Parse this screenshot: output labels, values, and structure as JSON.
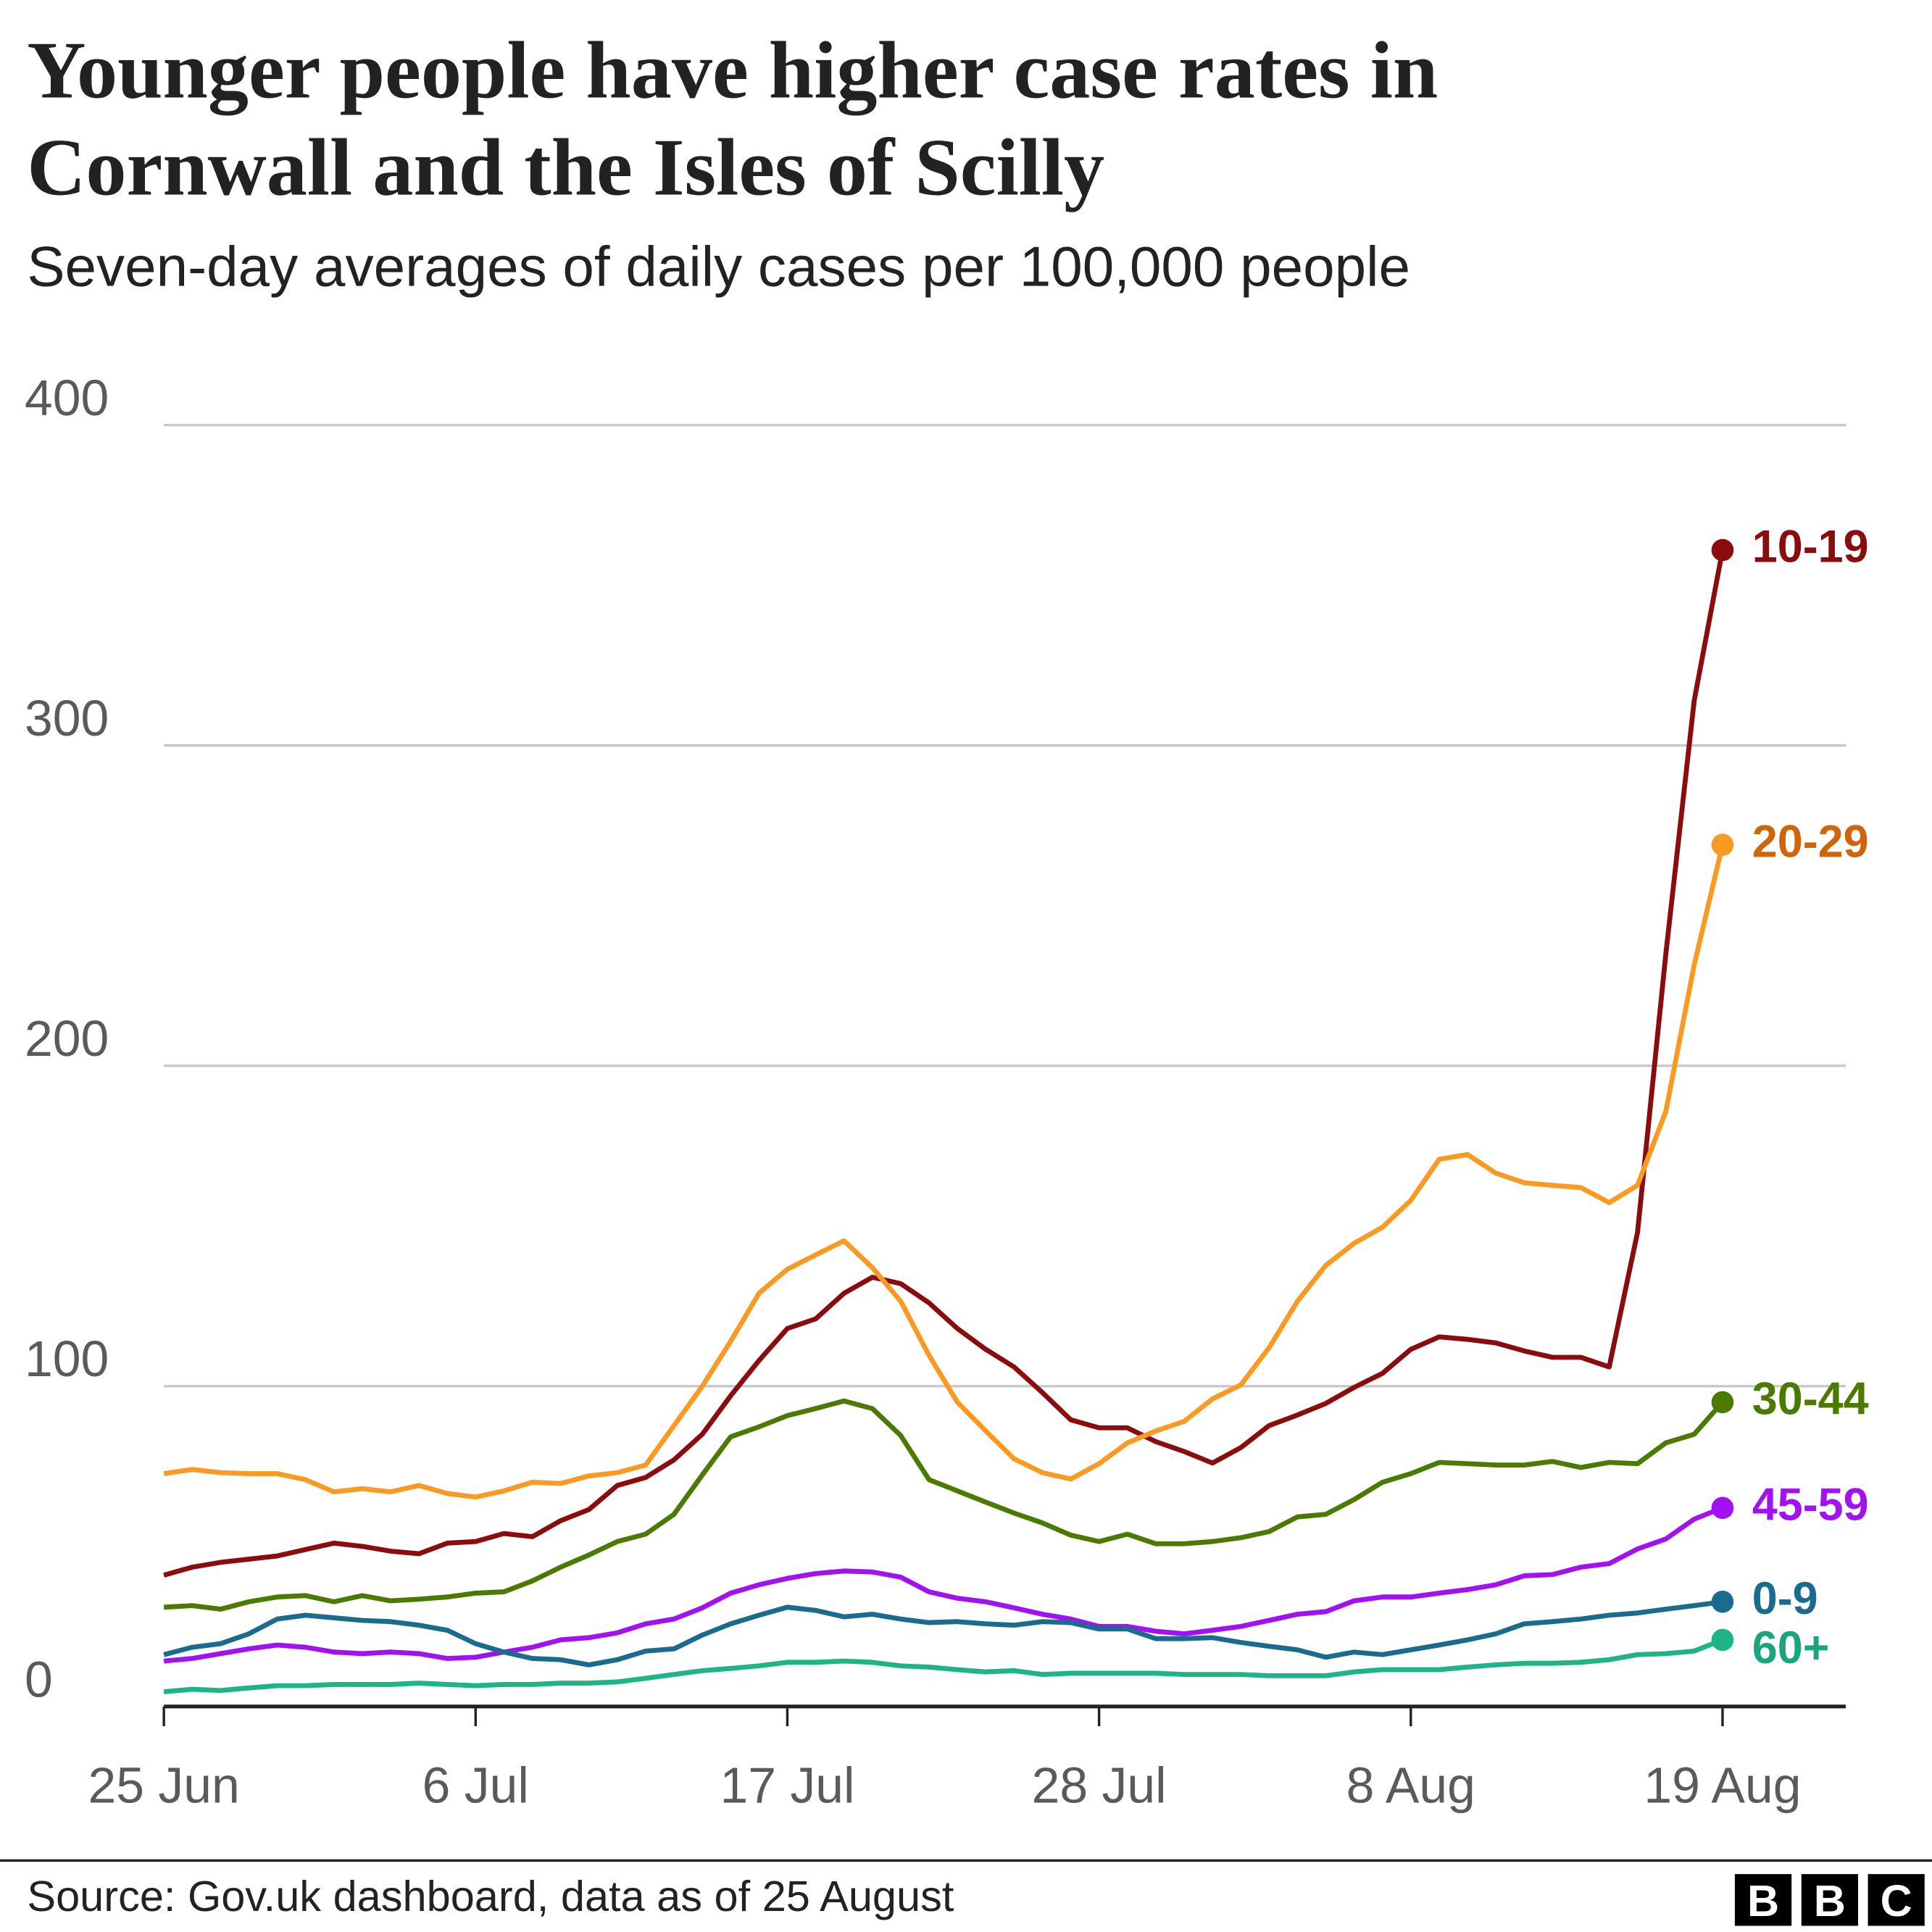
{
  "chart_data": {
    "type": "line",
    "title": [
      "Younger people have higher case rates in",
      "Cornwall and the Isles of Scilly"
    ],
    "subtitle": "Seven-day averages of daily cases per 100,000 people",
    "source": "Source: Gov.uk dashboard, data as of 25 August",
    "logo": [
      "B",
      "B",
      "C"
    ],
    "categories": [
      "25 Jun",
      null,
      null,
      null,
      null,
      null,
      null,
      null,
      null,
      null,
      null,
      "6 Jul",
      null,
      null,
      null,
      null,
      null,
      null,
      null,
      null,
      null,
      null,
      "17 Jul",
      null,
      null,
      null,
      null,
      null,
      null,
      null,
      null,
      null,
      null,
      "28 Jul",
      null,
      null,
      null,
      null,
      null,
      null,
      null,
      null,
      null,
      null,
      "8 Aug",
      null,
      null,
      null,
      null,
      null,
      null,
      null,
      null,
      null,
      null,
      "19 Aug"
    ],
    "ylim": [
      0,
      400
    ],
    "yticks": [
      0,
      100,
      200,
      300,
      400
    ],
    "grid": true,
    "series": [
      {
        "name": "10-19",
        "color": "#8a0c0c",
        "label_color": "#8a0c0c",
        "values": [
          41,
          43.5,
          45,
          46,
          47,
          49,
          51,
          50,
          48.5,
          47.7,
          51,
          51.5,
          54,
          53,
          58,
          61.5,
          69,
          71.5,
          77,
          85,
          97,
          108,
          118,
          121,
          129,
          134,
          132,
          126,
          118,
          111.5,
          106,
          98,
          89.5,
          87,
          87,
          82.7,
          79.6,
          76,
          80.8,
          87.7,
          91,
          94.6,
          99.6,
          104,
          111.5,
          115.4,
          114.6,
          113.5,
          111,
          109,
          109,
          106,
          148,
          235,
          314,
          361
        ]
      },
      {
        "name": "20-29",
        "color": "#fa9a22",
        "label_color": "#cf6408",
        "values": [
          72.7,
          74,
          73,
          72.7,
          72.7,
          70.8,
          67,
          68,
          67,
          69,
          66.5,
          65.4,
          67.3,
          70,
          69.6,
          72,
          73,
          75.4,
          87.7,
          100,
          114,
          129,
          136.5,
          141,
          145.4,
          137,
          126.5,
          109.6,
          95,
          86,
          77.3,
          73,
          71,
          75.8,
          82.3,
          86,
          89,
          96,
          100.4,
          112,
          126.5,
          137.7,
          144.6,
          149.6,
          158,
          170.8,
          172.3,
          166.5,
          163.5,
          162.7,
          162,
          157.3,
          162.7,
          185.8,
          231.5,
          269
        ]
      },
      {
        "name": "30-44",
        "color": "#4b7a00",
        "label_color": "#4b7a00",
        "values": [
          31,
          31.5,
          30.4,
          32.7,
          34.2,
          34.6,
          32.7,
          34.6,
          33,
          33.5,
          34.2,
          35.4,
          35.8,
          39.2,
          43.5,
          47.3,
          51.5,
          53.8,
          60,
          72.3,
          84.2,
          87.3,
          90.8,
          93,
          95.4,
          93,
          84.6,
          70.8,
          67.3,
          63.8,
          60.4,
          57.3,
          53.5,
          51.5,
          53.8,
          50.8,
          50.8,
          51.5,
          52.7,
          54.6,
          59.2,
          60,
          64.6,
          70,
          72.7,
          76.2,
          75.8,
          75.4,
          75.4,
          76.5,
          74.6,
          76.2,
          75.8,
          82.3,
          85,
          95
        ]
      },
      {
        "name": "45-59",
        "color": "#a012f2",
        "label_color": "#a012f2",
        "values": [
          14.2,
          15,
          16.5,
          18,
          19.2,
          18.5,
          17,
          16.5,
          17,
          16.5,
          15,
          15.4,
          17,
          18.5,
          20.8,
          21.5,
          23,
          25.8,
          27.3,
          30.8,
          35.4,
          38,
          40,
          41.5,
          42.3,
          42,
          40.4,
          35.8,
          33.8,
          32.7,
          30.8,
          28.8,
          27.3,
          25,
          25,
          23.5,
          22.7,
          23.8,
          25,
          26.9,
          28.8,
          29.6,
          33,
          34.2,
          34.2,
          35.4,
          36.5,
          38,
          40.8,
          41.2,
          43.5,
          44.6,
          49.2,
          52.3,
          58.5,
          62
        ]
      },
      {
        "name": "0-9",
        "color": "#1b6b8e",
        "label_color": "#1b6b8e",
        "values": [
          16.2,
          18.5,
          19.6,
          22.7,
          27.3,
          28.5,
          27.7,
          26.9,
          26.5,
          25.4,
          23.8,
          19.6,
          17,
          15,
          14.6,
          13,
          14.6,
          17.3,
          18,
          22.3,
          25.8,
          28.5,
          31,
          30,
          28,
          28.8,
          27.3,
          26.2,
          26.5,
          25.8,
          25.4,
          26.5,
          26.2,
          24.2,
          24.2,
          21.2,
          21.2,
          21.5,
          20,
          18.8,
          17.7,
          15.4,
          17,
          16.2,
          17.7,
          19.2,
          20.8,
          22.7,
          25.8,
          26.5,
          27.3,
          28.5,
          29.2,
          30.4,
          31.5,
          32.7
        ]
      },
      {
        "name": "60+",
        "color": "#1db587",
        "label_color": "#1aa67a",
        "values": [
          4.6,
          5.4,
          5,
          5.8,
          6.5,
          6.5,
          6.9,
          6.9,
          6.9,
          7.3,
          6.9,
          6.5,
          6.9,
          6.9,
          7.3,
          7.3,
          7.7,
          8.8,
          10,
          11.2,
          11.9,
          12.7,
          13.8,
          13.8,
          14.2,
          13.8,
          12.7,
          12.3,
          11.5,
          10.8,
          11.2,
          10,
          10.4,
          10.4,
          10.4,
          10.4,
          10,
          10,
          10,
          9.6,
          9.6,
          9.6,
          10.8,
          11.5,
          11.5,
          11.5,
          12.3,
          13,
          13.5,
          13.5,
          13.8,
          14.6,
          16.2,
          16.5,
          17.3,
          20.8
        ]
      }
    ]
  }
}
